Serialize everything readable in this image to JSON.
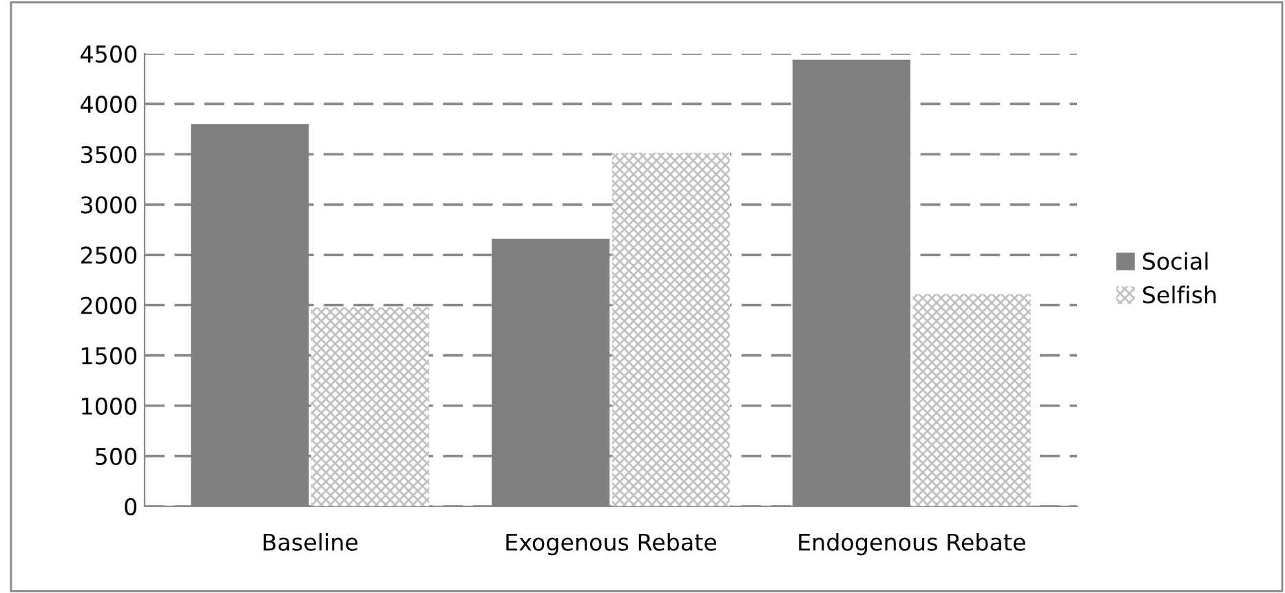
{
  "chart_data": {
    "type": "bar",
    "categories": [
      "Baseline",
      "Exogenous Rebate",
      "Endogenous Rebate"
    ],
    "series": [
      {
        "name": "Social",
        "color": "#808080",
        "values": [
          3800,
          2660,
          4440
        ]
      },
      {
        "name": "Selfish",
        "color": "#c0c0c0",
        "values": [
          1980,
          3510,
          2110
        ]
      }
    ],
    "ylim": [
      0,
      4500
    ],
    "yticks": [
      0,
      500,
      1000,
      1500,
      2000,
      2500,
      3000,
      3500,
      4000,
      4500
    ],
    "grid": "y",
    "legend": "right"
  }
}
